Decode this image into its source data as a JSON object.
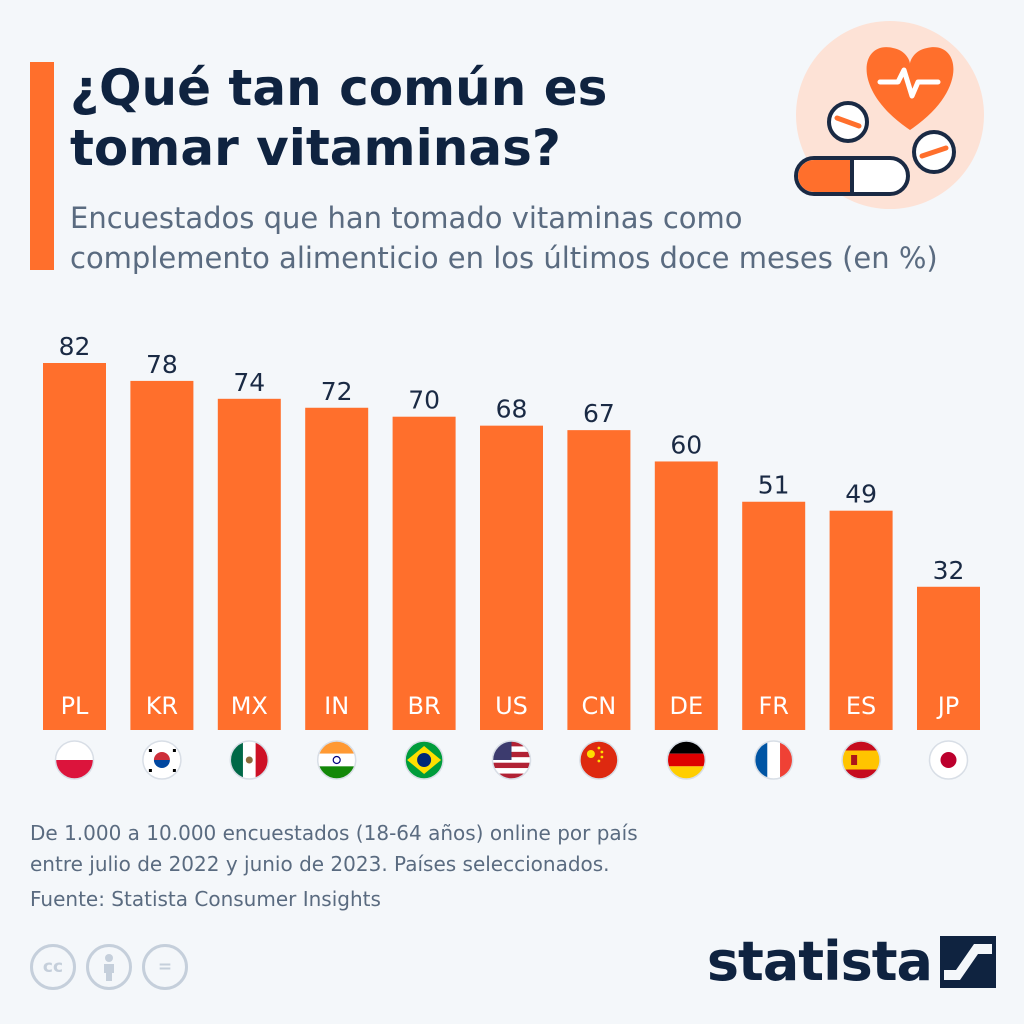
{
  "header": {
    "title_line1": "¿Qué tan común es",
    "title_line2": "tomar vitaminas?",
    "subtitle_line1": "Encuestados que han tomado vitaminas como",
    "subtitle_line2": "complemento alimenticio en los últimos doce meses (en %)"
  },
  "colors": {
    "accent": "#ff6f2c",
    "title": "#0f2340",
    "muted": "#5a6b80",
    "background": "#f4f7fa"
  },
  "icons": {
    "hero": "heart-pills-icon",
    "license": [
      "cc-icon",
      "attribution-icon",
      "no-derivatives-icon"
    ],
    "brand": "statista-logo-icon"
  },
  "chart_data": {
    "type": "bar",
    "title": "¿Qué tan común es tomar vitaminas?",
    "categories": [
      "PL",
      "KR",
      "MX",
      "IN",
      "BR",
      "US",
      "CN",
      "DE",
      "FR",
      "ES",
      "JP"
    ],
    "values": [
      82,
      78,
      74,
      72,
      70,
      68,
      67,
      60,
      51,
      49,
      32
    ],
    "flags": [
      "poland-flag-icon",
      "south-korea-flag-icon",
      "mexico-flag-icon",
      "india-flag-icon",
      "brazil-flag-icon",
      "usa-flag-icon",
      "china-flag-icon",
      "germany-flag-icon",
      "france-flag-icon",
      "spain-flag-icon",
      "japan-flag-icon"
    ],
    "ylim": [
      0,
      82
    ],
    "grid": false,
    "color": "#ff6f2c"
  },
  "footer": {
    "note_line1": "De 1.000 a 10.000 encuestados (18-64 años) online por país",
    "note_line2": "entre julio de 2022 y junio de 2023. Países seleccionados.",
    "source": "Fuente: Statista Consumer Insights",
    "brand": "statista",
    "license_cc": "cc",
    "license_nd": "="
  }
}
